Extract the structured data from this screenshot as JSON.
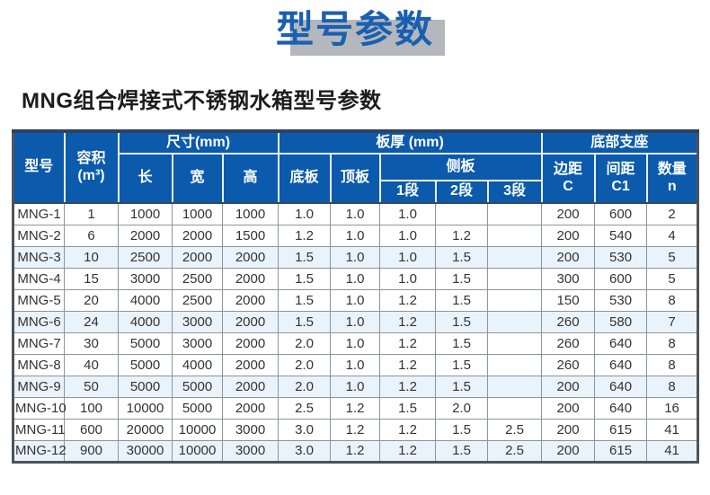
{
  "page": {
    "title": "型号参数",
    "subtitle": "MNG组合焊接式不锈钢水箱型号参数"
  },
  "colors": {
    "header_blue": "#0b5aac",
    "title_blue": "#1b5fb0",
    "title_shadow_gray": "#b4b8bd",
    "row_tint_blue": "#e9f3fb",
    "top_border_navy": "#2b4260"
  },
  "table": {
    "header": {
      "model": "型号",
      "volume_line1": "容积",
      "volume_line2": "(m³)",
      "dimensions_group": "尺寸(mm)",
      "length": "长",
      "width": "宽",
      "height": "高",
      "thickness_group": "板厚 (mm)",
      "bottom_plate": "底板",
      "top_plate": "顶板",
      "side_plate_group": "侧板",
      "seg1": "1段",
      "seg2": "2段",
      "seg3": "3段",
      "support_group": "底部支座",
      "edge_line1": "边距",
      "edge_line2": "C",
      "spacing_line1": "间距",
      "spacing_line2": "C1",
      "qty_line1": "数量",
      "qty_line2": "n"
    },
    "rows": [
      [
        "MNG-1",
        "1",
        "1000",
        "1000",
        "1000",
        "1.0",
        "1.0",
        "1.0",
        "",
        "",
        "200",
        "600",
        "2"
      ],
      [
        "MNG-2",
        "6",
        "2000",
        "2000",
        "1500",
        "1.2",
        "1.0",
        "1.0",
        "1.2",
        "",
        "200",
        "540",
        "4"
      ],
      [
        "MNG-3",
        "10",
        "2500",
        "2000",
        "2000",
        "1.5",
        "1.0",
        "1.0",
        "1.5",
        "",
        "200",
        "530",
        "5"
      ],
      [
        "MNG-4",
        "15",
        "3000",
        "2500",
        "2000",
        "1.5",
        "1.0",
        "1.0",
        "1.5",
        "",
        "300",
        "600",
        "5"
      ],
      [
        "MNG-5",
        "20",
        "4000",
        "2500",
        "2000",
        "1.5",
        "1.0",
        "1.2",
        "1.5",
        "",
        "150",
        "530",
        "8"
      ],
      [
        "MNG-6",
        "24",
        "4000",
        "3000",
        "2000",
        "1.5",
        "1.0",
        "1.2",
        "1.5",
        "",
        "260",
        "580",
        "7"
      ],
      [
        "MNG-7",
        "30",
        "5000",
        "3000",
        "2000",
        "2.0",
        "1.0",
        "1.2",
        "1.5",
        "",
        "260",
        "640",
        "8"
      ],
      [
        "MNG-8",
        "40",
        "5000",
        "4000",
        "2000",
        "2.0",
        "1.0",
        "1.2",
        "1.5",
        "",
        "260",
        "640",
        "8"
      ],
      [
        "MNG-9",
        "50",
        "5000",
        "5000",
        "2000",
        "2.0",
        "1.0",
        "1.2",
        "1.5",
        "",
        "200",
        "640",
        "8"
      ],
      [
        "MNG-10",
        "100",
        "10000",
        "5000",
        "2000",
        "2.5",
        "1.2",
        "1.5",
        "2.0",
        "",
        "200",
        "640",
        "16"
      ],
      [
        "MNG-11",
        "600",
        "20000",
        "10000",
        "3000",
        "3.0",
        "1.2",
        "1.2",
        "1.5",
        "2.5",
        "200",
        "615",
        "41"
      ],
      [
        "MNG-12",
        "900",
        "30000",
        "10000",
        "3000",
        "3.0",
        "1.2",
        "1.2",
        "1.5",
        "2.5",
        "200",
        "615",
        "41"
      ]
    ],
    "tinted_row_indexes": [
      2,
      5,
      8,
      11
    ]
  }
}
